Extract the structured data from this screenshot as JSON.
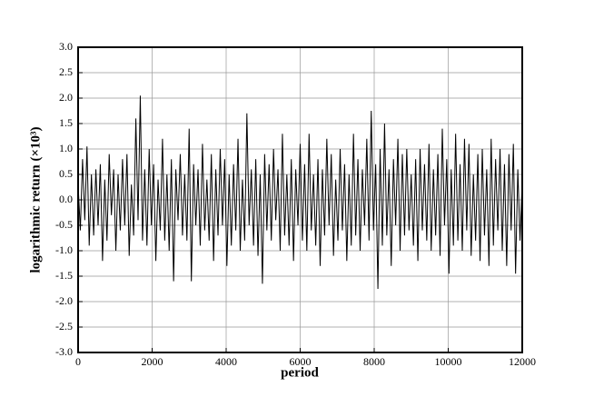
{
  "chart_data": {
    "type": "line",
    "xlabel": "period",
    "ylabel": "logarithmic return (×10³)",
    "color": "#000000",
    "grid": true,
    "xlim": [
      0,
      12000
    ],
    "xticks": [
      0,
      2000,
      4000,
      6000,
      8000,
      10000,
      12000
    ],
    "ylim": [
      -3,
      3
    ],
    "yticks": [
      {
        "value": 3,
        "label": "3.0"
      },
      2.5,
      {
        "value": 2,
        "label": "2.0"
      },
      1.5,
      {
        "value": 1,
        "label": "1.0"
      },
      0.5,
      {
        "value": 0,
        "label": "0.0"
      },
      -0.5,
      {
        "value": -1,
        "label": "-1.0"
      },
      -1.5,
      {
        "value": -2,
        "label": "-2.0"
      },
      -2.5,
      {
        "value": -3,
        "label": "-3.0"
      }
    ],
    "x": [
      0,
      60,
      120,
      180,
      240,
      300,
      360,
      420,
      480,
      540,
      600,
      660,
      720,
      780,
      840,
      900,
      960,
      1020,
      1080,
      1140,
      1200,
      1260,
      1320,
      1380,
      1440,
      1500,
      1560,
      1620,
      1680,
      1740,
      1800,
      1860,
      1920,
      1980,
      2040,
      2100,
      2160,
      2220,
      2280,
      2340,
      2400,
      2460,
      2520,
      2580,
      2640,
      2700,
      2760,
      2820,
      2880,
      2940,
      3000,
      3060,
      3120,
      3180,
      3240,
      3300,
      3360,
      3420,
      3480,
      3540,
      3600,
      3660,
      3720,
      3780,
      3840,
      3900,
      3960,
      4020,
      4080,
      4140,
      4200,
      4260,
      4320,
      4380,
      4440,
      4500,
      4560,
      4620,
      4680,
      4740,
      4800,
      4860,
      4920,
      4980,
      5040,
      5100,
      5160,
      5220,
      5280,
      5340,
      5400,
      5460,
      5520,
      5580,
      5640,
      5700,
      5760,
      5820,
      5880,
      5940,
      6000,
      6060,
      6120,
      6180,
      6240,
      6300,
      6360,
      6420,
      6480,
      6540,
      6600,
      6660,
      6720,
      6780,
      6840,
      6900,
      6960,
      7020,
      7080,
      7140,
      7200,
      7260,
      7320,
      7380,
      7440,
      7500,
      7560,
      7620,
      7680,
      7740,
      7800,
      7860,
      7920,
      7980,
      8040,
      8100,
      8160,
      8220,
      8280,
      8340,
      8400,
      8460,
      8520,
      8580,
      8640,
      8700,
      8760,
      8820,
      8880,
      8940,
      9000,
      9060,
      9120,
      9180,
      9240,
      9300,
      9360,
      9420,
      9480,
      9540,
      9600,
      9660,
      9720,
      9780,
      9840,
      9900,
      9960,
      10020,
      10080,
      10140,
      10200,
      10260,
      10320,
      10380,
      10440,
      10500,
      10560,
      10620,
      10680,
      10740,
      10800,
      10860,
      10920,
      10980,
      11040,
      11100,
      11160,
      11220,
      11280,
      11340,
      11400,
      11460,
      11520,
      11580,
      11640,
      11700,
      11760,
      11820,
      11880,
      11940,
      12000
    ],
    "values": [
      0.3,
      -0.6,
      0.8,
      -0.4,
      1.05,
      -0.9,
      0.5,
      -0.7,
      0.6,
      -0.5,
      0.7,
      -1.2,
      0.4,
      -0.8,
      0.9,
      -0.3,
      0.6,
      -1.0,
      0.5,
      -0.6,
      0.8,
      -0.5,
      0.9,
      -1.1,
      0.3,
      -0.7,
      1.6,
      -0.4,
      2.05,
      -0.8,
      0.6,
      -0.9,
      1.0,
      -0.5,
      0.7,
      -1.2,
      0.4,
      -0.6,
      1.2,
      -0.8,
      0.5,
      -1.0,
      0.8,
      -1.6,
      0.6,
      -0.4,
      0.9,
      -0.7,
      0.5,
      -0.8,
      1.4,
      -1.6,
      0.7,
      -0.5,
      0.6,
      -0.9,
      1.1,
      -0.6,
      0.4,
      -0.8,
      0.9,
      -1.2,
      0.6,
      -0.7,
      1.0,
      -0.5,
      0.8,
      -1.3,
      0.5,
      -0.9,
      0.7,
      -0.6,
      1.2,
      -1.0,
      0.4,
      -0.8,
      1.7,
      -0.5,
      0.6,
      -0.9,
      0.8,
      -1.1,
      0.5,
      -1.65,
      0.9,
      -0.6,
      0.7,
      -0.8,
      1.0,
      -0.4,
      0.6,
      -1.0,
      1.3,
      -0.7,
      0.5,
      -0.9,
      0.8,
      -1.2,
      0.6,
      -0.5,
      1.1,
      -0.8,
      0.7,
      -1.0,
      1.3,
      -0.6,
      0.5,
      -0.9,
      0.8,
      -1.3,
      0.6,
      -0.7,
      1.2,
      -0.5,
      0.9,
      -1.1,
      0.4,
      -0.8,
      1.0,
      -0.6,
      0.7,
      -1.2,
      0.5,
      -0.9,
      1.3,
      -0.7,
      0.8,
      -1.0,
      0.6,
      -0.5,
      1.2,
      -0.8,
      1.75,
      -0.6,
      0.7,
      -1.75,
      1.0,
      -0.9,
      1.5,
      -0.7,
      0.6,
      -1.3,
      0.8,
      -0.5,
      1.2,
      -1.0,
      0.9,
      -0.7,
      1.0,
      -0.6,
      0.5,
      -0.9,
      0.8,
      -1.2,
      1.0,
      -0.6,
      0.7,
      -0.8,
      1.1,
      -1.0,
      0.6,
      -0.7,
      0.9,
      -1.1,
      1.4,
      -0.5,
      0.8,
      -1.45,
      0.6,
      -0.9,
      1.3,
      -0.8,
      0.7,
      -1.0,
      1.2,
      -0.6,
      1.1,
      -1.1,
      0.5,
      -0.8,
      0.9,
      -1.2,
      1.0,
      -0.7,
      0.6,
      -1.3,
      1.2,
      -0.9,
      0.8,
      -0.6,
      1.0,
      -1.0,
      0.7,
      -1.3,
      0.9,
      -0.6,
      1.1,
      -1.45,
      0.6,
      -0.8,
      0.4
    ]
  }
}
